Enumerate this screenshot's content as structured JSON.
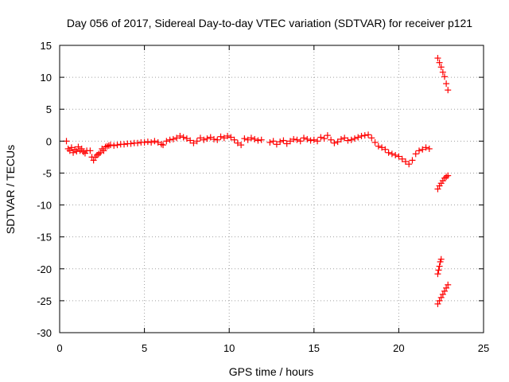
{
  "chart_data": {
    "type": "scatter",
    "title": "Day 056 of 2017, Sidereal Day-to-day VTEC variation (SDTVAR) for receiver p121",
    "xlabel": "GPS time / hours",
    "ylabel": "SDTVAR / TECUs",
    "xlim": [
      0,
      25
    ],
    "ylim": [
      -30,
      15
    ],
    "x_ticks": [
      0,
      5,
      10,
      15,
      20,
      25
    ],
    "y_ticks": [
      -30,
      -25,
      -20,
      -15,
      -10,
      -5,
      0,
      5,
      10,
      15
    ],
    "grid": true,
    "marker": "plus",
    "colors": {
      "series": "#ff0000",
      "grid": "#a0a0a0",
      "axis": "#000000"
    },
    "series": [
      {
        "segments": [
          {
            "x": [
              0.4,
              0.5,
              0.6,
              0.7,
              0.8,
              0.9,
              1.0,
              1.1,
              1.2,
              1.3,
              1.4,
              1.5,
              1.6
            ],
            "y": [
              0.0,
              -1.2,
              -1.5,
              -1.0,
              -1.8,
              -1.3,
              -1.6,
              -0.9,
              -1.5,
              -1.2,
              -1.7,
              -1.9,
              -1.5
            ]
          },
          {
            "x": [
              1.8,
              1.9,
              2.0,
              2.1,
              2.2,
              2.3,
              2.4,
              2.5,
              2.6,
              2.7,
              2.8,
              2.9,
              3.0,
              3.2,
              3.4,
              3.6,
              3.8,
              4.0,
              4.2,
              4.4,
              4.6,
              4.8,
              5.0,
              5.2,
              5.4,
              5.6,
              5.8,
              6.0,
              6.1
            ],
            "y": [
              -1.5,
              -2.5,
              -3.0,
              -2.5,
              -2.2,
              -2.0,
              -1.8,
              -1.2,
              -1.5,
              -0.9,
              -0.8,
              -0.7,
              -0.6,
              -0.7,
              -0.6,
              -0.5,
              -0.5,
              -0.4,
              -0.4,
              -0.3,
              -0.3,
              -0.2,
              -0.2,
              -0.1,
              -0.2,
              0.0,
              -0.2,
              -0.5,
              -0.6
            ]
          },
          {
            "x": [
              6.3,
              6.5,
              6.7,
              6.9,
              7.1,
              7.3,
              7.5,
              7.7,
              7.9,
              8.1,
              8.3,
              8.5,
              8.7,
              8.9,
              9.1,
              9.3,
              9.5,
              9.7,
              9.9,
              10.1,
              10.3,
              10.5,
              10.7,
              10.9,
              11.1,
              11.3,
              11.5,
              11.7,
              11.9
            ],
            "y": [
              0.0,
              0.2,
              0.3,
              0.5,
              0.8,
              0.6,
              0.4,
              0.1,
              -0.3,
              0.0,
              0.5,
              0.2,
              0.4,
              0.6,
              0.3,
              0.2,
              0.7,
              0.5,
              0.8,
              0.6,
              0.2,
              -0.3,
              -0.6,
              0.4,
              0.2,
              0.5,
              0.3,
              0.1,
              0.2
            ]
          },
          {
            "x": [
              12.4,
              12.6,
              12.8,
              13.0,
              13.2,
              13.4,
              13.6,
              13.8,
              14.0,
              14.2,
              14.4,
              14.6,
              14.8,
              15.0,
              15.2,
              15.4,
              15.6,
              15.8,
              16.0,
              16.2,
              16.4,
              16.6,
              16.8,
              17.0,
              17.2,
              17.4,
              17.6,
              17.8,
              18.0,
              18.2,
              18.4,
              18.6,
              18.8,
              19.0,
              19.2,
              19.4,
              19.6,
              19.8,
              20.0,
              20.2,
              20.4,
              20.6,
              20.8,
              21.0,
              21.2,
              21.4,
              21.6,
              21.8
            ],
            "y": [
              -0.2,
              0.0,
              -0.5,
              -0.1,
              0.1,
              -0.4,
              0.0,
              0.3,
              0.2,
              0.0,
              0.5,
              0.3,
              0.1,
              0.2,
              0.0,
              0.6,
              0.4,
              0.9,
              0.2,
              -0.3,
              -0.1,
              0.3,
              0.5,
              0.1,
              0.2,
              0.4,
              0.6,
              0.8,
              0.9,
              1.0,
              0.5,
              -0.2,
              -0.8,
              -1.0,
              -1.3,
              -1.8,
              -2.0,
              -2.2,
              -2.4,
              -2.8,
              -3.2,
              -3.6,
              -3.0,
              -2.0,
              -1.5,
              -1.3,
              -1.0,
              -1.2
            ]
          },
          {
            "x": [
              22.3,
              22.4,
              22.5,
              22.6,
              22.7,
              22.8,
              22.9
            ],
            "y": [
              13.0,
              12.3,
              11.6,
              10.8,
              10.1,
              9.0,
              8.0
            ]
          },
          {
            "x": [
              22.3,
              22.4,
              22.5,
              22.6,
              22.7,
              22.8,
              22.9
            ],
            "y": [
              -7.5,
              -7.0,
              -6.6,
              -6.2,
              -5.8,
              -5.6,
              -5.4
            ]
          },
          {
            "x": [
              22.3,
              22.35,
              22.4,
              22.45,
              22.5
            ],
            "y": [
              -20.8,
              -20.2,
              -19.6,
              -18.9,
              -18.5
            ]
          },
          {
            "x": [
              22.3,
              22.4,
              22.5,
              22.6,
              22.7,
              22.8,
              22.9
            ],
            "y": [
              -25.5,
              -25.0,
              -24.5,
              -24.0,
              -23.5,
              -23.0,
              -22.5
            ]
          }
        ]
      }
    ]
  }
}
